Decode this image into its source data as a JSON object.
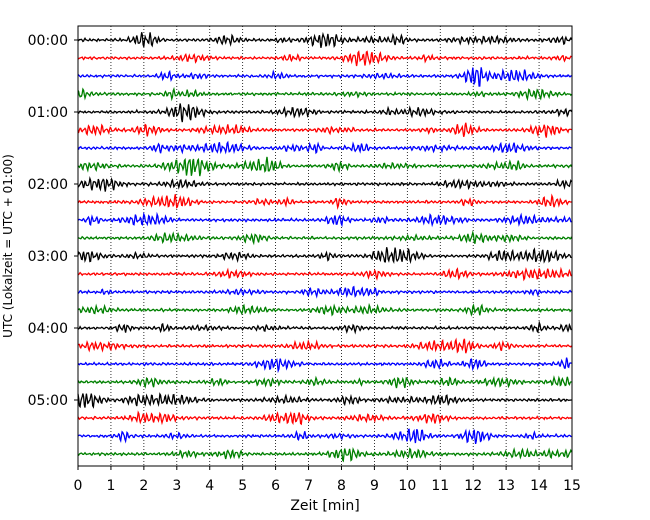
{
  "chart_data": {
    "type": "line",
    "title": "",
    "xlabel": "Zeit  [min]",
    "ylabel": "UTC (Lokalzeit = UTC + 01:00)",
    "xlim": [
      0,
      15
    ],
    "x_ticks": [
      0,
      1,
      2,
      3,
      4,
      5,
      6,
      7,
      8,
      9,
      10,
      11,
      12,
      13,
      14,
      15
    ],
    "x_tick_labels": [
      "0",
      "1",
      "2",
      "3",
      "4",
      "5",
      "6",
      "7",
      "8",
      "9",
      "10",
      "11",
      "12",
      "13",
      "14",
      "15"
    ],
    "y_tick_labels": [
      "00:00",
      "01:00",
      "02:00",
      "03:00",
      "04:00",
      "05:00"
    ],
    "y_tick_rows": [
      0,
      4,
      8,
      12,
      16,
      20
    ],
    "row_count": 24,
    "row_interval_min": 15,
    "row_colors": [
      "#000000",
      "#ff0000",
      "#0000ff",
      "#008000"
    ],
    "grid_x": true,
    "grid_style": "dotted",
    "legend": "none"
  }
}
